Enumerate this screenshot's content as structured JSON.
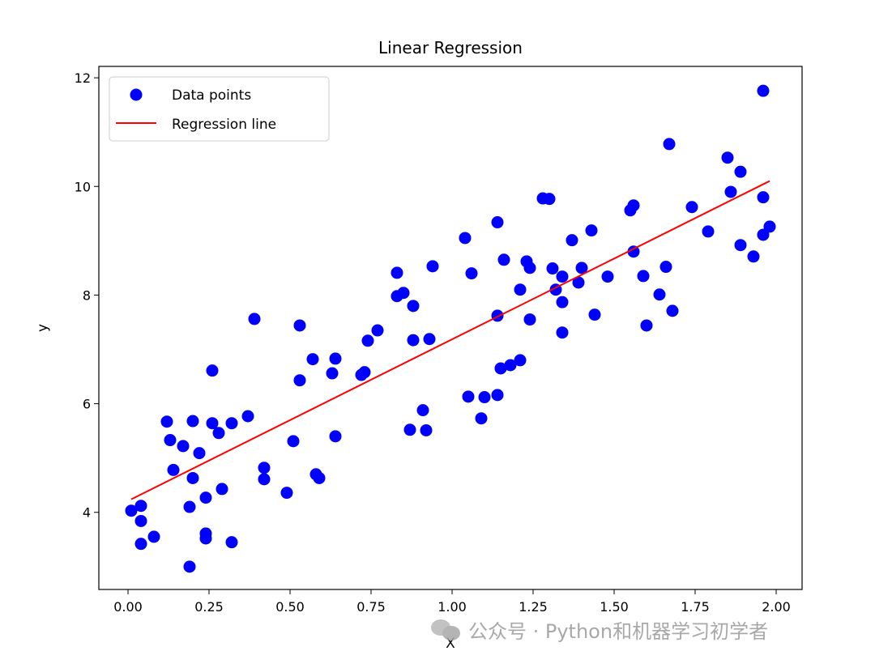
{
  "chart_data": {
    "type": "scatter",
    "title": "Linear Regression",
    "xlabel": "X",
    "ylabel": "y",
    "xlim": [
      -0.09,
      2.08
    ],
    "ylim": [
      2.58,
      12.21
    ],
    "xticks": [
      "0.00",
      "0.25",
      "0.50",
      "0.75",
      "1.00",
      "1.25",
      "1.50",
      "1.75",
      "2.00"
    ],
    "xtick_values": [
      0,
      0.25,
      0.5,
      0.75,
      1,
      1.25,
      1.5,
      1.75,
      2
    ],
    "yticks": [
      "4",
      "6",
      "8",
      "10",
      "12"
    ],
    "ytick_values": [
      4,
      6,
      8,
      10,
      12
    ],
    "grid": false,
    "legend": {
      "placement": "top-left",
      "entries": [
        "Data points",
        "Regression line"
      ]
    },
    "series": [
      {
        "name": "Data points",
        "type": "scatter",
        "color": "#0000ff",
        "points": [
          [
            0.01,
            4.03
          ],
          [
            0.04,
            4.12
          ],
          [
            0.04,
            3.84
          ],
          [
            0.04,
            3.42
          ],
          [
            0.08,
            3.55
          ],
          [
            0.12,
            5.67
          ],
          [
            0.13,
            5.33
          ],
          [
            0.14,
            4.78
          ],
          [
            0.17,
            5.22
          ],
          [
            0.2,
            5.68
          ],
          [
            0.19,
            4.1
          ],
          [
            0.19,
            3.0
          ],
          [
            0.2,
            4.63
          ],
          [
            0.22,
            5.09
          ],
          [
            0.24,
            4.27
          ],
          [
            0.24,
            3.61
          ],
          [
            0.24,
            3.52
          ],
          [
            0.26,
            6.61
          ],
          [
            0.26,
            5.64
          ],
          [
            0.28,
            5.46
          ],
          [
            0.29,
            4.43
          ],
          [
            0.32,
            3.45
          ],
          [
            0.32,
            5.64
          ],
          [
            0.37,
            5.77
          ],
          [
            0.39,
            7.56
          ],
          [
            0.42,
            4.61
          ],
          [
            0.42,
            4.82
          ],
          [
            0.49,
            4.36
          ],
          [
            0.51,
            5.31
          ],
          [
            0.53,
            7.44
          ],
          [
            0.53,
            6.43
          ],
          [
            0.57,
            6.82
          ],
          [
            0.58,
            4.7
          ],
          [
            0.59,
            4.63
          ],
          [
            0.63,
            6.56
          ],
          [
            0.64,
            6.83
          ],
          [
            0.64,
            5.4
          ],
          [
            0.72,
            6.53
          ],
          [
            0.73,
            6.58
          ],
          [
            0.74,
            7.16
          ],
          [
            0.77,
            7.35
          ],
          [
            0.83,
            8.41
          ],
          [
            0.83,
            7.98
          ],
          [
            0.85,
            8.04
          ],
          [
            0.88,
            7.8
          ],
          [
            0.87,
            5.52
          ],
          [
            0.88,
            7.17
          ],
          [
            0.91,
            5.88
          ],
          [
            0.92,
            5.51
          ],
          [
            0.93,
            7.19
          ],
          [
            0.94,
            8.53
          ],
          [
            1.04,
            9.05
          ],
          [
            1.05,
            6.13
          ],
          [
            1.06,
            8.4
          ],
          [
            1.09,
            5.73
          ],
          [
            1.1,
            6.12
          ],
          [
            1.14,
            6.16
          ],
          [
            1.14,
            9.34
          ],
          [
            1.14,
            7.62
          ],
          [
            1.15,
            6.65
          ],
          [
            1.16,
            8.65
          ],
          [
            1.18,
            6.71
          ],
          [
            1.21,
            8.1
          ],
          [
            1.21,
            6.8
          ],
          [
            1.23,
            8.62
          ],
          [
            1.24,
            7.55
          ],
          [
            1.24,
            8.5
          ],
          [
            1.28,
            9.78
          ],
          [
            1.3,
            9.77
          ],
          [
            1.31,
            8.49
          ],
          [
            1.32,
            8.1
          ],
          [
            1.34,
            8.34
          ],
          [
            1.34,
            7.31
          ],
          [
            1.34,
            7.87
          ],
          [
            1.37,
            9.01
          ],
          [
            1.4,
            8.5
          ],
          [
            1.39,
            8.23
          ],
          [
            1.43,
            9.19
          ],
          [
            1.44,
            7.64
          ],
          [
            1.48,
            8.34
          ],
          [
            1.55,
            9.56
          ],
          [
            1.56,
            9.65
          ],
          [
            1.56,
            8.8
          ],
          [
            1.59,
            8.35
          ],
          [
            1.6,
            7.44
          ],
          [
            1.64,
            8.01
          ],
          [
            1.66,
            8.52
          ],
          [
            1.67,
            10.78
          ],
          [
            1.68,
            7.71
          ],
          [
            1.74,
            9.62
          ],
          [
            1.79,
            9.17
          ],
          [
            1.85,
            10.53
          ],
          [
            1.86,
            9.9
          ],
          [
            1.89,
            10.27
          ],
          [
            1.89,
            8.92
          ],
          [
            1.93,
            8.71
          ],
          [
            1.96,
            9.8
          ],
          [
            1.96,
            9.11
          ],
          [
            1.96,
            11.76
          ],
          [
            1.98,
            9.26
          ]
        ]
      },
      {
        "name": "Regression line",
        "type": "line",
        "color": "#ff0000",
        "points": [
          [
            0.01,
            4.24
          ],
          [
            1.98,
            10.1
          ]
        ]
      }
    ]
  },
  "watermark": "公众号 · Python和机器学习初学者"
}
